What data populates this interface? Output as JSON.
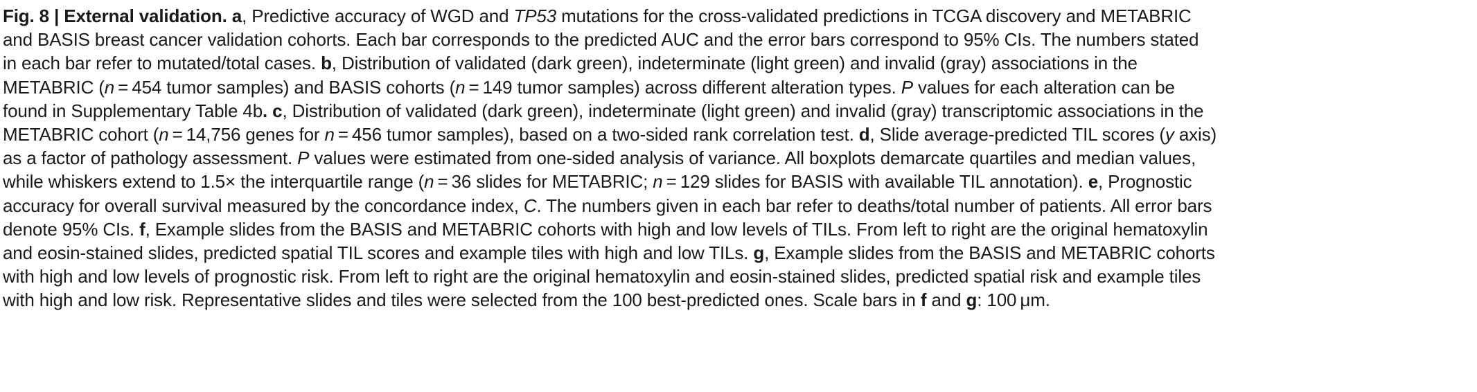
{
  "caption": {
    "lines": [
      [
        {
          "t": "Fig. 8 | External validation. ",
          "b": true
        },
        {
          "t": "a",
          "b": true
        },
        {
          "t": ", Predictive accuracy of WGD and "
        },
        {
          "t": "TP53",
          "i": true
        },
        {
          "t": " mutations for the cross-validated predictions in TCGA discovery and METABRIC"
        }
      ],
      [
        {
          "t": "and BASIS breast cancer validation cohorts. Each bar corresponds to the predicted AUC and the error bars correspond to 95% CIs. The numbers stated"
        }
      ],
      [
        {
          "t": "in each bar refer to mutated/total cases. "
        },
        {
          "t": "b",
          "b": true
        },
        {
          "t": ", Distribution of validated (dark green), indeterminate (light green) and invalid (gray) associations in the"
        }
      ],
      [
        {
          "t": "METABRIC ("
        },
        {
          "t": "n",
          "i": true
        },
        {
          "t": " = 454 tumor samples) and BASIS cohorts ("
        },
        {
          "t": "n",
          "i": true
        },
        {
          "t": " = 149 tumor samples) across different alteration types. "
        },
        {
          "t": "P",
          "i": true
        },
        {
          "t": " values for each alteration can be"
        }
      ],
      [
        {
          "t": "found in Supplementary Table 4b"
        },
        {
          "t": ". c",
          "b": true
        },
        {
          "t": ", Distribution of validated (dark green), indeterminate (light green) and invalid (gray) transcriptomic associations in the"
        }
      ],
      [
        {
          "t": "METABRIC cohort ("
        },
        {
          "t": "n",
          "i": true
        },
        {
          "t": " = 14,756 genes for "
        },
        {
          "t": "n",
          "i": true
        },
        {
          "t": " = 456 tumor samples), based on a two-sided rank correlation test. "
        },
        {
          "t": "d",
          "b": true
        },
        {
          "t": ", Slide average-predicted TIL scores ("
        },
        {
          "t": "y",
          "i": true
        },
        {
          "t": " axis)"
        }
      ],
      [
        {
          "t": "as a factor of pathology assessment. "
        },
        {
          "t": "P",
          "i": true
        },
        {
          "t": " values were estimated from one-sided analysis of variance. All boxplots demarcate quartiles and median values,"
        }
      ],
      [
        {
          "t": "while whiskers extend to 1.5× the interquartile range ("
        },
        {
          "t": "n",
          "i": true
        },
        {
          "t": " = 36 slides for METABRIC; "
        },
        {
          "t": "n",
          "i": true
        },
        {
          "t": " = 129 slides for BASIS with available TIL annotation). "
        },
        {
          "t": "e",
          "b": true
        },
        {
          "t": ", Prognostic"
        }
      ],
      [
        {
          "t": "accuracy for overall survival measured by the concordance index, "
        },
        {
          "t": "C",
          "i": true
        },
        {
          "t": ". The numbers given in each bar refer to deaths/total number of patients. All error bars"
        }
      ],
      [
        {
          "t": "denote 95% CIs. "
        },
        {
          "t": "f",
          "b": true
        },
        {
          "t": ", Example slides from the BASIS and METABRIC cohorts with high and low levels of TILs. From left to right are the original hematoxylin"
        }
      ],
      [
        {
          "t": "and eosin-stained slides, predicted spatial TIL scores and example tiles with high and low TILs. "
        },
        {
          "t": "g",
          "b": true
        },
        {
          "t": ", Example slides from the BASIS and METABRIC cohorts"
        }
      ],
      [
        {
          "t": "with high and low levels of prognostic risk. From left to right are the original hematoxylin and eosin-stained slides, predicted spatial risk and example tiles"
        }
      ],
      [
        {
          "t": "with high and low risk. Representative slides and tiles were selected from the 100 best-predicted ones. Scale bars in "
        },
        {
          "t": "f",
          "b": true
        },
        {
          "t": " and "
        },
        {
          "t": "g",
          "b": true
        },
        {
          "t": ": 100 μm."
        }
      ]
    ]
  }
}
